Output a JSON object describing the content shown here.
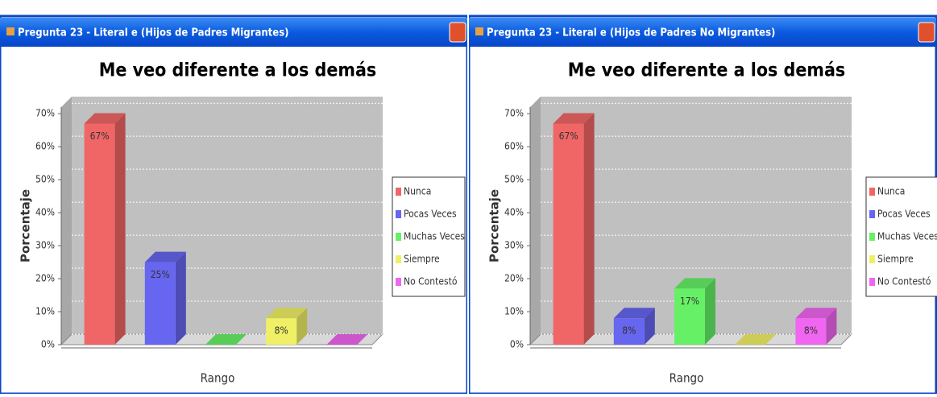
{
  "windows": [
    {
      "title": "Pregunta 23 - Literal e (Hijos de Padres Migrantes)"
    },
    {
      "title": "Pregunta 23 - Literal e (Hijos de Padres No Migrantes)"
    }
  ],
  "chart_data": [
    {
      "type": "bar",
      "title": "Me veo diferente a los demás",
      "y_label": "Porcentaje",
      "x_label": "Rango",
      "categories": [
        "Nunca",
        "Pocas Veces",
        "Muchas Veces",
        "Siempre",
        "No Contestó"
      ],
      "values": [
        67,
        25,
        0,
        8,
        0
      ],
      "value_labels": [
        "67%",
        "25%",
        null,
        "8%",
        null
      ],
      "colors": [
        "#f06666",
        "#6666f0",
        "#66f066",
        "#f0f066",
        "#f066f0"
      ],
      "ylim": [
        0,
        72
      ],
      "yticks": [
        {
          "value": 0,
          "label": "0%"
        },
        {
          "value": 10,
          "label": "10%"
        },
        {
          "value": 20,
          "label": "20%"
        },
        {
          "value": 30,
          "label": "30%"
        },
        {
          "value": 40,
          "label": "40%"
        },
        {
          "value": 50,
          "label": "50%"
        },
        {
          "value": 60,
          "label": "60%"
        },
        {
          "value": 70,
          "label": "70%"
        }
      ],
      "grid": true,
      "legend": "right"
    },
    {
      "type": "bar",
      "title": "Me veo diferente a los demás",
      "y_label": "Porcentaje",
      "x_label": "Rango",
      "categories": [
        "Nunca",
        "Pocas Veces",
        "Muchas Veces",
        "Siempre",
        "No Contestó"
      ],
      "values": [
        67,
        8,
        17,
        0,
        8
      ],
      "value_labels": [
        "67%",
        "8%",
        "17%",
        null,
        "8%"
      ],
      "colors": [
        "#f06666",
        "#6666f0",
        "#66f066",
        "#f0f066",
        "#f066f0"
      ],
      "ylim": [
        0,
        72
      ],
      "yticks": [
        {
          "value": 0,
          "label": "0%"
        },
        {
          "value": 10,
          "label": "10%"
        },
        {
          "value": 20,
          "label": "20%"
        },
        {
          "value": 30,
          "label": "30%"
        },
        {
          "value": 40,
          "label": "40%"
        },
        {
          "value": 50,
          "label": "50%"
        },
        {
          "value": 60,
          "label": "60%"
        },
        {
          "value": 70,
          "label": "70%"
        }
      ],
      "grid": true,
      "legend": "right"
    }
  ]
}
